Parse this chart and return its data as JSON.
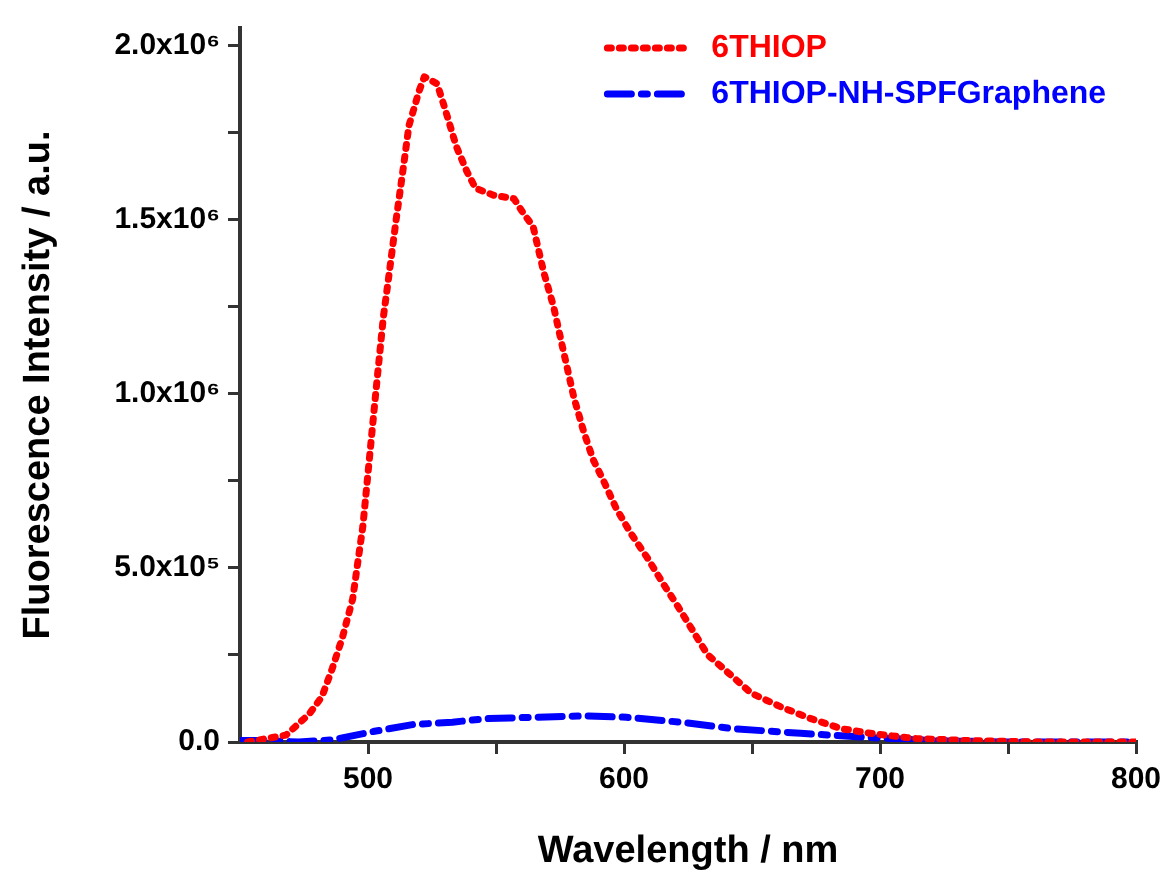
{
  "chart_data": {
    "type": "line",
    "xlabel": "Wavelength / nm",
    "ylabel": "Fluorescence Intensity / a.u.",
    "xlim": [
      450,
      800
    ],
    "xticks": [
      500,
      {
        "value": 550,
        "label": null
      },
      600,
      {
        "value": 650,
        "label": null
      },
      700,
      {
        "value": 750,
        "label": null
      },
      800
    ],
    "ylim": [
      0,
      2050000
    ],
    "yticks": [
      {
        "value": 0,
        "label": "0.0"
      },
      {
        "value": 250000,
        "label": null
      },
      {
        "value": 500000,
        "label": "5.0x10⁵"
      },
      {
        "value": 750000,
        "label": null
      },
      {
        "value": 1000000,
        "label": "1.0x10⁶"
      },
      {
        "value": 1250000,
        "label": null
      },
      {
        "value": 1500000,
        "label": "1.5x10⁶"
      },
      {
        "value": 1750000,
        "label": null
      },
      {
        "value": 2000000,
        "label": "2.0x10⁶"
      }
    ],
    "grid": false,
    "legend": "top right",
    "marker": "none",
    "series": [
      {
        "name": "6THIOP",
        "color": "#ff0000",
        "line_style": "dotted",
        "x": [
          453,
          468,
          477,
          482,
          486,
          490,
          494,
          498,
          500.5,
          503,
          506,
          508,
          511,
          514,
          516,
          520,
          522,
          527,
          530,
          534.5,
          538.5,
          542,
          549,
          557,
          560.5,
          564.5,
          568.6,
          572.5,
          576.4,
          580.4,
          584.3,
          588,
          592,
          597,
          602.6,
          609,
          615.7,
          621,
          626,
          632.7,
          639,
          649.7,
          661.5,
          673,
          685,
          698,
          714,
          735,
          761,
          800
        ],
        "values": [
          0,
          20000,
          80000,
          130000,
          210000,
          300000,
          410000,
          620000,
          810000,
          1000000,
          1220000,
          1330000,
          1500000,
          1660000,
          1770000,
          1870000,
          1910000,
          1890000,
          1820000,
          1710000,
          1640000,
          1590000,
          1570000,
          1560000,
          1520000,
          1480000,
          1350000,
          1250000,
          1120000,
          990000,
          890000,
          810000,
          750000,
          670000,
          600000,
          530000,
          450000,
          390000,
          330000,
          250000,
          210000,
          140000,
          100000,
          67000,
          38000,
          23000,
          10000,
          4000,
          0,
          0
        ]
      },
      {
        "name": "6THIOP-NH-SPFGraphene",
        "color": "#0000ff",
        "line_style": "dashdot",
        "x": [
          450,
          460,
          473,
          486,
          502,
          517.5,
          533,
          546,
          565,
          585.6,
          601,
          622,
          643,
          669,
          695.5,
          721.7,
          748,
          800
        ],
        "values": [
          4000,
          4000,
          0,
          6000,
          30000,
          50000,
          57000,
          67000,
          71000,
          75000,
          71000,
          57000,
          38000,
          25000,
          13000,
          4000,
          0,
          0
        ]
      }
    ]
  }
}
